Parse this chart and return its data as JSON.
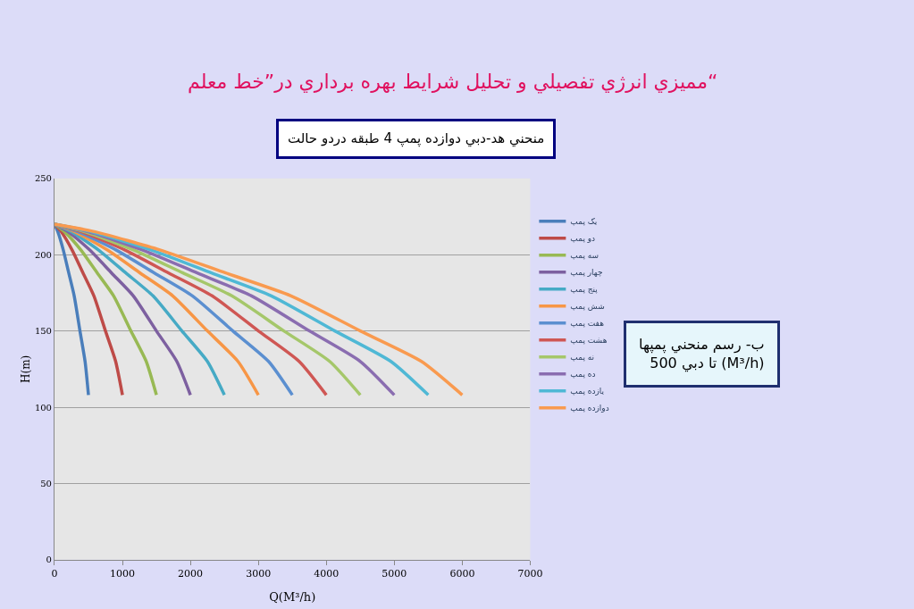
{
  "chart_data": {
    "type": "line",
    "title": "مميزي انرژي تفصيلي و تحليل شرايط بهره برداري در”خط معلم“",
    "subtitle": "منحني هد-دبي دوازده پمپ 4 طبقه دردو حالت",
    "xlabel": "Q(M³/h)",
    "ylabel": "H(m)",
    "annotations": [
      "ب- رسم منحني پمپها\nتا دبي 500 (M³/h)"
    ],
    "xlim": [
      0,
      7000
    ],
    "xticks": [
      0,
      1000,
      2000,
      3000,
      4000,
      5000,
      6000,
      7000
    ],
    "ylim": [
      0,
      250
    ],
    "yticks": [
      0,
      50,
      100,
      150,
      200,
      250
    ],
    "grid": "y",
    "legend": "right",
    "marker": "none",
    "line_style": "solid",
    "series": [
      {
        "name": "يک پمپ",
        "color": "#4a7ebb",
        "x": [
          0,
          50,
          130,
          210,
          290,
          375,
          450,
          500
        ],
        "values": [
          220,
          215,
          203,
          188,
          173,
          150,
          130,
          108
        ]
      },
      {
        "name": "دو پمپ",
        "color": "#be4b48",
        "x": [
          0,
          100,
          260,
          420,
          580,
          750,
          900,
          1000
        ],
        "values": [
          220,
          215,
          203,
          188,
          173,
          150,
          130,
          108
        ]
      },
      {
        "name": "سه پمپ",
        "color": "#98b954",
        "x": [
          0,
          150,
          390,
          630,
          870,
          1125,
          1350,
          1500
        ],
        "values": [
          220,
          215,
          203,
          188,
          173,
          150,
          130,
          108
        ]
      },
      {
        "name": "چهار پمپ",
        "color": "#7d60a0",
        "x": [
          0,
          200,
          520,
          840,
          1160,
          1500,
          1800,
          2000
        ],
        "values": [
          220,
          215,
          203,
          188,
          173,
          150,
          130,
          108
        ]
      },
      {
        "name": "پنج پمپ",
        "color": "#46aac5",
        "x": [
          0,
          250,
          650,
          1050,
          1450,
          1875,
          2250,
          2500
        ],
        "values": [
          220,
          215,
          203,
          188,
          173,
          150,
          130,
          108
        ]
      },
      {
        "name": "شش پمپ",
        "color": "#f79646",
        "x": [
          0,
          300,
          780,
          1260,
          1740,
          2250,
          2700,
          3000
        ],
        "values": [
          220,
          215,
          203,
          188,
          173,
          150,
          130,
          108
        ]
      },
      {
        "name": "هفت پمپ",
        "color": "#5b8fd0",
        "x": [
          0,
          350,
          910,
          1470,
          2030,
          2625,
          3150,
          3500
        ],
        "values": [
          220,
          215,
          203,
          188,
          173,
          150,
          130,
          108
        ]
      },
      {
        "name": "هشت پمپ",
        "color": "#cf5754",
        "x": [
          0,
          400,
          1040,
          1680,
          2320,
          3000,
          3600,
          4000
        ],
        "values": [
          220,
          215,
          203,
          188,
          173,
          150,
          130,
          108
        ]
      },
      {
        "name": "نه پمپ",
        "color": "#a5c76a",
        "x": [
          0,
          450,
          1170,
          1890,
          2610,
          3375,
          4050,
          4500
        ],
        "values": [
          220,
          215,
          203,
          188,
          173,
          150,
          130,
          108
        ]
      },
      {
        "name": "ده پمپ",
        "color": "#8a6db0",
        "x": [
          0,
          500,
          1300,
          2100,
          2900,
          3750,
          4500,
          5000
        ],
        "values": [
          220,
          215,
          203,
          188,
          173,
          150,
          130,
          108
        ]
      },
      {
        "name": "يازده پمپ",
        "color": "#4fb8d5",
        "x": [
          0,
          550,
          1430,
          2310,
          3190,
          4125,
          4950,
          5500
        ],
        "values": [
          220,
          215,
          203,
          188,
          173,
          150,
          130,
          108
        ]
      },
      {
        "name": "دوازده پمپ",
        "color": "#f99a4f",
        "x": [
          0,
          600,
          1560,
          2520,
          3480,
          4500,
          5400,
          6000
        ],
        "values": [
          220,
          215,
          203,
          188,
          173,
          150,
          130,
          108
        ]
      }
    ]
  }
}
